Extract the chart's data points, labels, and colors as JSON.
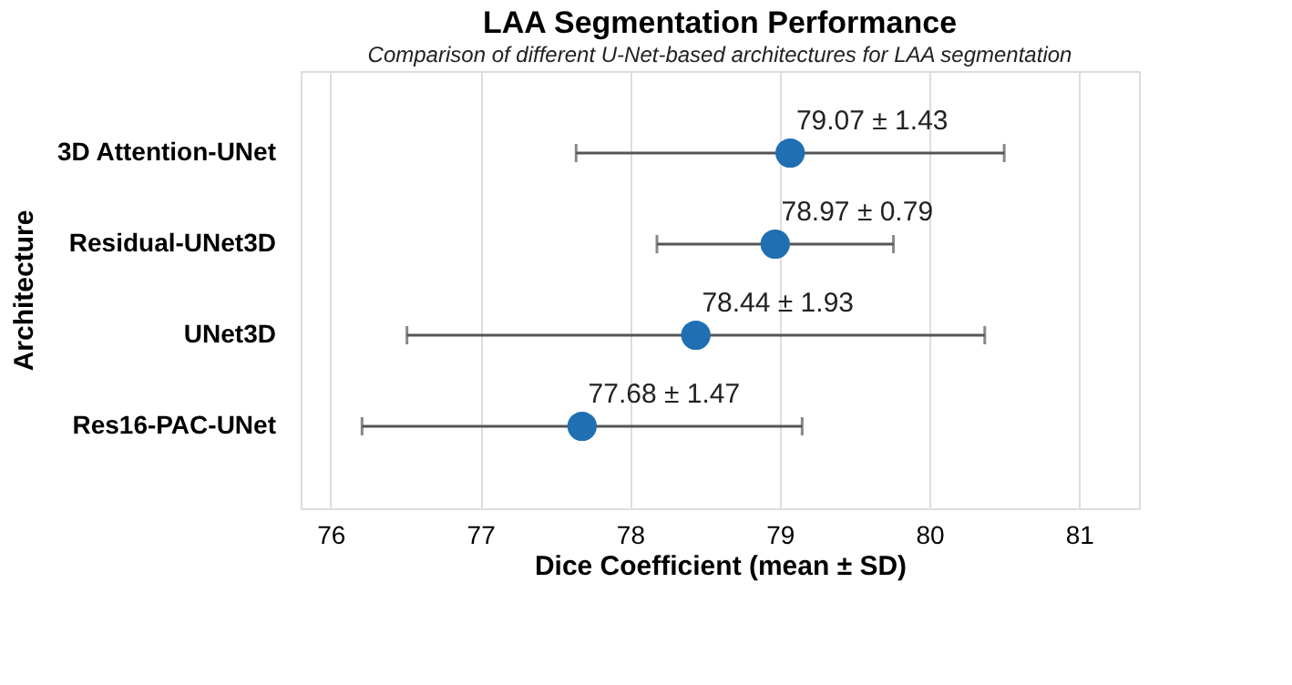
{
  "chart_data": {
    "type": "scatter",
    "orientation": "horizontal",
    "title": "LAA Segmentation Performance",
    "subtitle": "Comparison of different U-Net-based architectures for LAA segmentation",
    "xlabel": "Dice Coefficient (mean ± SD)",
    "ylabel": "Architecture",
    "categories": [
      "3D Attention-UNet",
      "Residual-UNet3D",
      "UNet3D",
      "Res16-PAC-UNet"
    ],
    "values": [
      79.07,
      78.97,
      78.44,
      77.68
    ],
    "errors": [
      1.43,
      0.79,
      1.93,
      1.47
    ],
    "value_labels": [
      "79.07 ± 1.43",
      "78.97 ± 0.79",
      "78.44 ± 1.93",
      "77.68 ± 1.47"
    ],
    "color": "#1f6fb2",
    "marker": "circle",
    "xlim": [
      75.8,
      81.4
    ],
    "xticks": [
      76,
      77,
      78,
      79,
      80,
      81
    ],
    "grid": "x",
    "legend": false
  }
}
